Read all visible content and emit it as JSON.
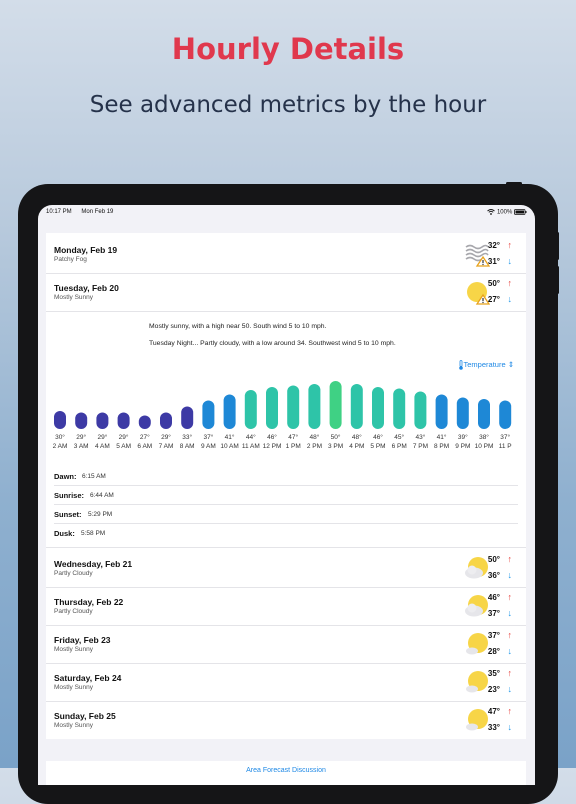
{
  "header": {
    "title": "Hourly Details",
    "subtitle": "See advanced metrics by the hour"
  },
  "status_bar": {
    "time": "10:17 PM",
    "date": "Mon Feb 19",
    "battery": "100%"
  },
  "days_top": [
    {
      "name": "Monday, Feb 19",
      "condition": "Patchy Fog",
      "high": "32°",
      "low": "31°",
      "icon": "fog-warning-icon"
    },
    {
      "name": "Tuesday, Feb 20",
      "condition": "Mostly Sunny",
      "high": "50°",
      "low": "27°",
      "icon": "sun-warning-icon"
    }
  ],
  "forecast_text": [
    "Mostly sunny, with a high near 50. South wind 5 to 10 mph.",
    "Tuesday Night... Partly cloudy, with a low around 34. Southwest wind 5 to 10 mph."
  ],
  "metric_selector": "Temperature",
  "chart_data": {
    "type": "bar",
    "categories": [
      "2 AM",
      "3 AM",
      "4 AM",
      "5 AM",
      "6 AM",
      "7 AM",
      "8 AM",
      "9 AM",
      "10 AM",
      "11 AM",
      "12 PM",
      "1 PM",
      "2 PM",
      "3 PM",
      "4 PM",
      "5 PM",
      "6 PM",
      "7 PM",
      "8 PM",
      "9 PM",
      "10 PM",
      "11 P"
    ],
    "values": [
      30,
      29,
      29,
      29,
      27,
      29,
      33,
      37,
      41,
      44,
      46,
      47,
      48,
      50,
      48,
      46,
      45,
      43,
      41,
      39,
      38,
      37
    ],
    "labels": [
      "30°",
      "29°",
      "29°",
      "29°",
      "27°",
      "29°",
      "33°",
      "37°",
      "41°",
      "44°",
      "46°",
      "47°",
      "48°",
      "50°",
      "48°",
      "46°",
      "45°",
      "43°",
      "41°",
      "39°",
      "38°",
      "37°"
    ],
    "colors": {
      "cold": "#3d3aa5",
      "mid": "#1e88d6",
      "warm": "#2ec4a8",
      "hot": "#3fd184"
    }
  },
  "astronomy": [
    {
      "label": "Dawn:",
      "value": "6:15 AM"
    },
    {
      "label": "Sunrise:",
      "value": "6:44 AM"
    },
    {
      "label": "Sunset:",
      "value": "5:29 PM"
    },
    {
      "label": "Dusk:",
      "value": "5:58 PM"
    }
  ],
  "days_bottom": [
    {
      "name": "Wednesday, Feb 21",
      "condition": "Partly Cloudy",
      "high": "50°",
      "low": "36°",
      "icon": "partly-cloudy-icon"
    },
    {
      "name": "Thursday, Feb 22",
      "condition": "Partly Cloudy",
      "high": "46°",
      "low": "37°",
      "icon": "partly-cloudy-icon"
    },
    {
      "name": "Friday, Feb 23",
      "condition": "Mostly Sunny",
      "high": "37°",
      "low": "28°",
      "icon": "mostly-sunny-icon"
    },
    {
      "name": "Saturday, Feb 24",
      "condition": "Mostly Sunny",
      "high": "35°",
      "low": "23°",
      "icon": "mostly-sunny-icon"
    },
    {
      "name": "Sunday, Feb 25",
      "condition": "Mostly Sunny",
      "high": "47°",
      "low": "33°",
      "icon": "mostly-sunny-icon"
    }
  ],
  "footer_link": "Area Forecast Discussion"
}
